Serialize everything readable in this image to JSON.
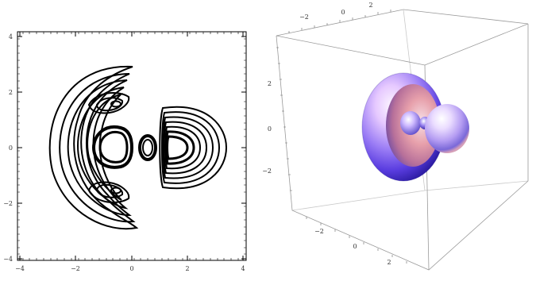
{
  "contour_plot": {
    "x_ticks": [
      "−4",
      "−2",
      "0",
      "2",
      "4"
    ],
    "y_ticks": [
      "4",
      "2",
      "0",
      "−2",
      "−4"
    ]
  },
  "surface_plot": {
    "top_axis_ticks": [
      "−2",
      "0",
      "2"
    ],
    "left_axis_ticks": [
      "2",
      "0",
      "−2"
    ],
    "bottom_axis_ticks": [
      "−2",
      "0",
      "2"
    ],
    "colors": {
      "ring_light": "#f3e9ff",
      "ring_mid": "#b8a8ff",
      "ring_dark": "#3b2fd0",
      "ring_warm": "#e98a96"
    }
  }
}
